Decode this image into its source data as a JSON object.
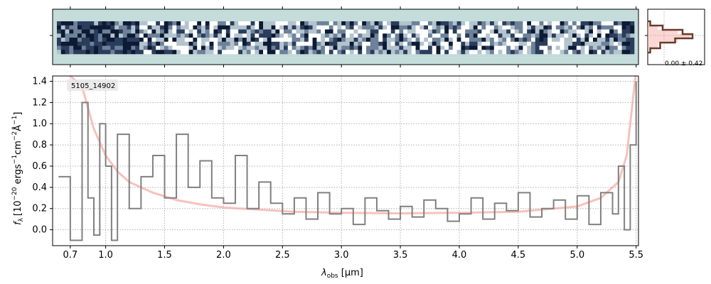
{
  "chart_data": [
    {
      "type": "heatmap",
      "panel": "2d-spectrum",
      "background_color": "#c4dcda",
      "x_ticks": [
        0.7,
        1.0,
        1.5,
        2.0,
        2.5,
        3.0,
        3.5,
        4.0,
        4.5,
        5.0,
        5.5
      ],
      "colors": [
        "#0d1a33",
        "#2b3d5c",
        "#6d8299",
        "#b3c4cf",
        "#ffffff"
      ]
    },
    {
      "type": "line",
      "panel": "1d-spectrum",
      "object_label": "5105_14902",
      "xlabel": "λ_obs [μm]",
      "xlabel_text": "obs",
      "xlabel_unit": " [μm]",
      "ylabel": "f_λ [10^-20 ergs^-1cm^-2Å^-1]",
      "ylabel_sub": "λ",
      "ylabel_parts": [
        "[10",
        "−20",
        " ergs",
        "−1",
        "cm",
        "−2",
        "Å",
        "−1",
        "]"
      ],
      "xlim": [
        0.55,
        5.52
      ],
      "ylim": [
        -0.15,
        1.45
      ],
      "x_tick_labels": [
        "0.7",
        "1.0",
        "1.5",
        "2.0",
        "2.5",
        "3.0",
        "3.5",
        "4.0",
        "4.5",
        "5.0",
        "5.5"
      ],
      "x_ticks": [
        0.7,
        1.0,
        1.5,
        2.0,
        2.5,
        3.0,
        3.5,
        4.0,
        4.5,
        5.0,
        5.5
      ],
      "y_tick_labels": [
        "0.0",
        "0.2",
        "0.4",
        "0.6",
        "0.8",
        "1.0",
        "1.2",
        "1.4"
      ],
      "y_ticks": [
        0.0,
        0.2,
        0.4,
        0.6,
        0.8,
        1.0,
        1.2,
        1.4
      ],
      "grid": true,
      "series": [
        {
          "role": "flux",
          "style": "steps",
          "color": "#808080",
          "x": [
            0.6,
            0.7,
            0.8,
            0.85,
            0.9,
            0.95,
            1.0,
            1.05,
            1.1,
            1.2,
            1.3,
            1.4,
            1.5,
            1.6,
            1.7,
            1.8,
            1.9,
            2.0,
            2.1,
            2.2,
            2.3,
            2.4,
            2.5,
            2.6,
            2.7,
            2.8,
            2.9,
            3.0,
            3.1,
            3.2,
            3.3,
            3.4,
            3.5,
            3.6,
            3.7,
            3.8,
            3.9,
            4.0,
            4.1,
            4.2,
            4.3,
            4.4,
            4.5,
            4.6,
            4.7,
            4.8,
            4.9,
            5.0,
            5.1,
            5.2,
            5.3,
            5.35,
            5.4,
            5.45,
            5.5
          ],
          "y": [
            0.5,
            -0.1,
            1.2,
            0.3,
            -0.05,
            1.0,
            0.6,
            -0.1,
            0.9,
            0.2,
            0.5,
            0.7,
            0.3,
            0.9,
            0.4,
            0.65,
            0.3,
            0.25,
            0.7,
            0.2,
            0.45,
            0.25,
            0.15,
            0.3,
            0.1,
            0.35,
            0.15,
            0.2,
            0.05,
            0.3,
            0.18,
            0.1,
            0.22,
            0.12,
            0.28,
            0.2,
            0.08,
            0.15,
            0.3,
            0.1,
            0.25,
            0.18,
            0.35,
            0.12,
            0.2,
            0.28,
            0.1,
            0.32,
            0.05,
            0.35,
            0.15,
            0.6,
            0.0,
            0.8,
            1.4
          ]
        },
        {
          "role": "error",
          "style": "line",
          "color": "#f4a6a0",
          "x": [
            0.6,
            0.7,
            0.8,
            0.85,
            0.9,
            1.0,
            1.1,
            1.2,
            1.4,
            1.6,
            1.8,
            2.0,
            2.3,
            2.6,
            3.0,
            3.5,
            4.0,
            4.5,
            5.0,
            5.2,
            5.35,
            5.42,
            5.47,
            5.5
          ],
          "y": [
            1.5,
            1.45,
            1.35,
            1.15,
            0.95,
            0.7,
            0.55,
            0.45,
            0.35,
            0.28,
            0.24,
            0.21,
            0.19,
            0.17,
            0.16,
            0.155,
            0.16,
            0.17,
            0.22,
            0.3,
            0.45,
            0.7,
            1.2,
            1.5
          ]
        }
      ]
    },
    {
      "type": "line",
      "panel": "profile",
      "annotation": "0.00 ± 0.42",
      "series": [
        {
          "role": "model",
          "color": "#f4a6a0",
          "values": [
            0.0,
            0.2,
            0.6,
            0.85,
            0.6,
            0.2,
            0.0
          ]
        },
        {
          "role": "data",
          "color": "#6b3a2a",
          "values": [
            0.05,
            0.3,
            0.7,
            0.9,
            0.55,
            0.25,
            0.05
          ]
        }
      ]
    }
  ]
}
